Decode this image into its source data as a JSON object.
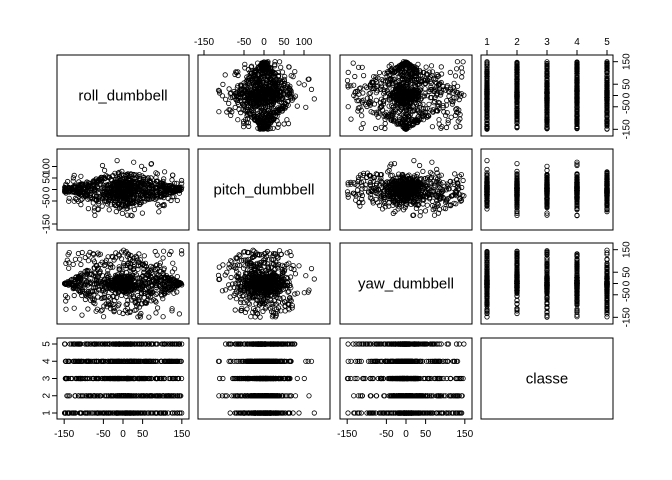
{
  "chart_data": {
    "type": "scatter",
    "subtype": "scatterplot-matrix",
    "variables": [
      "roll_dumbbell",
      "pitch_dumbbell",
      "yaw_dumbbell",
      "classe"
    ],
    "axis_ticks": {
      "roll_dumbbell": {
        "values": [
          -150,
          -50,
          0,
          50,
          150
        ],
        "labels": [
          "-150",
          "-50",
          "0",
          "50",
          "150"
        ],
        "range": [
          -153,
          153
        ]
      },
      "pitch_dumbbell": {
        "values": [
          -150,
          -50,
          0,
          50,
          100
        ],
        "labels": [
          "-150",
          "-50",
          "0",
          "50",
          "100"
        ],
        "range": [
          -150,
          150
        ]
      },
      "yaw_dumbbell": {
        "values": [
          -150,
          -50,
          0,
          50,
          150
        ],
        "labels": [
          "-150",
          "-50",
          "0",
          "50",
          "150"
        ],
        "range": [
          -153,
          153
        ]
      },
      "classe": {
        "values": [
          1,
          2,
          3,
          4,
          5
        ],
        "labels": [
          "1",
          "2",
          "3",
          "4",
          "5"
        ],
        "range": [
          1,
          5
        ]
      }
    },
    "axis_placement": {
      "top": [
        "pitch_dumbbell",
        "classe"
      ],
      "bottom": [
        "roll_dumbbell",
        "yaw_dumbbell"
      ],
      "left": [
        "pitch_dumbbell",
        "classe"
      ],
      "right": [
        "roll_dumbbell",
        "yaw_dumbbell"
      ]
    },
    "marker": "open-circle",
    "point_color": "#000000",
    "grid": false,
    "legend": "none"
  }
}
